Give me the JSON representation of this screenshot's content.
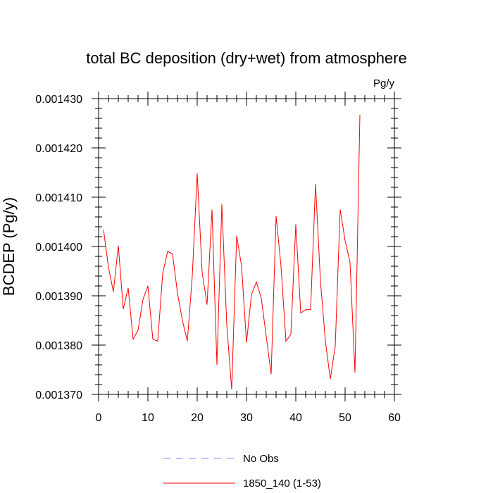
{
  "chart_data": {
    "type": "line",
    "title": "total BC deposition (dry+wet) from atmosphere",
    "units": "Pg/y",
    "ylabel": "BCDEP  (Pg/y)",
    "xlabel": "",
    "xlim": [
      0,
      60
    ],
    "ylim": [
      0.00137,
      0.00143
    ],
    "xticks": [
      "0",
      "10",
      "20",
      "30",
      "40",
      "50",
      "60"
    ],
    "yticks": [
      "0.001370",
      "0.001380",
      "0.001390",
      "0.001400",
      "0.001410",
      "0.001420",
      "0.001430"
    ],
    "grid": false,
    "legend_position": "bottom",
    "legend": [
      {
        "label": "No Obs",
        "color": "#8080ff",
        "style": "dashed"
      },
      {
        "label": "1850_140 (1-53)",
        "color": "#ff0000",
        "style": "solid"
      }
    ],
    "series": [
      {
        "name": "1850_140 (1-53)",
        "color": "#ff0000",
        "x": [
          1,
          2,
          3,
          4,
          5,
          6,
          7,
          8,
          9,
          10,
          11,
          12,
          13,
          14,
          15,
          16,
          17,
          18,
          19,
          20,
          21,
          22,
          23,
          24,
          25,
          26,
          27,
          28,
          29,
          30,
          31,
          32,
          33,
          34,
          35,
          36,
          37,
          38,
          39,
          40,
          41,
          42,
          43,
          44,
          45,
          46,
          47,
          48,
          49,
          50,
          51,
          52,
          53
        ],
        "y": [
          0.0014034,
          0.0013958,
          0.0013908,
          0.0014002,
          0.0013873,
          0.0013916,
          0.0013812,
          0.001383,
          0.0013893,
          0.001392,
          0.0013812,
          0.0013808,
          0.0013945,
          0.001399,
          0.0013985,
          0.0013905,
          0.001385,
          0.0013808,
          0.001394,
          0.0014148,
          0.0013948,
          0.0013882,
          0.0014075,
          0.001376,
          0.0014086,
          0.001384,
          0.001371,
          0.0014022,
          0.001396,
          0.0013805,
          0.0013902,
          0.0013928,
          0.0013895,
          0.0013818,
          0.0013741,
          0.0014062,
          0.001396,
          0.0013808,
          0.0013822,
          0.0014045,
          0.0013865,
          0.0013872,
          0.0013872,
          0.0014127,
          0.001393,
          0.0013808,
          0.0013731,
          0.0013798,
          0.0014075,
          0.0014012,
          0.0013968,
          0.0013744,
          0.0014267
        ]
      }
    ]
  }
}
